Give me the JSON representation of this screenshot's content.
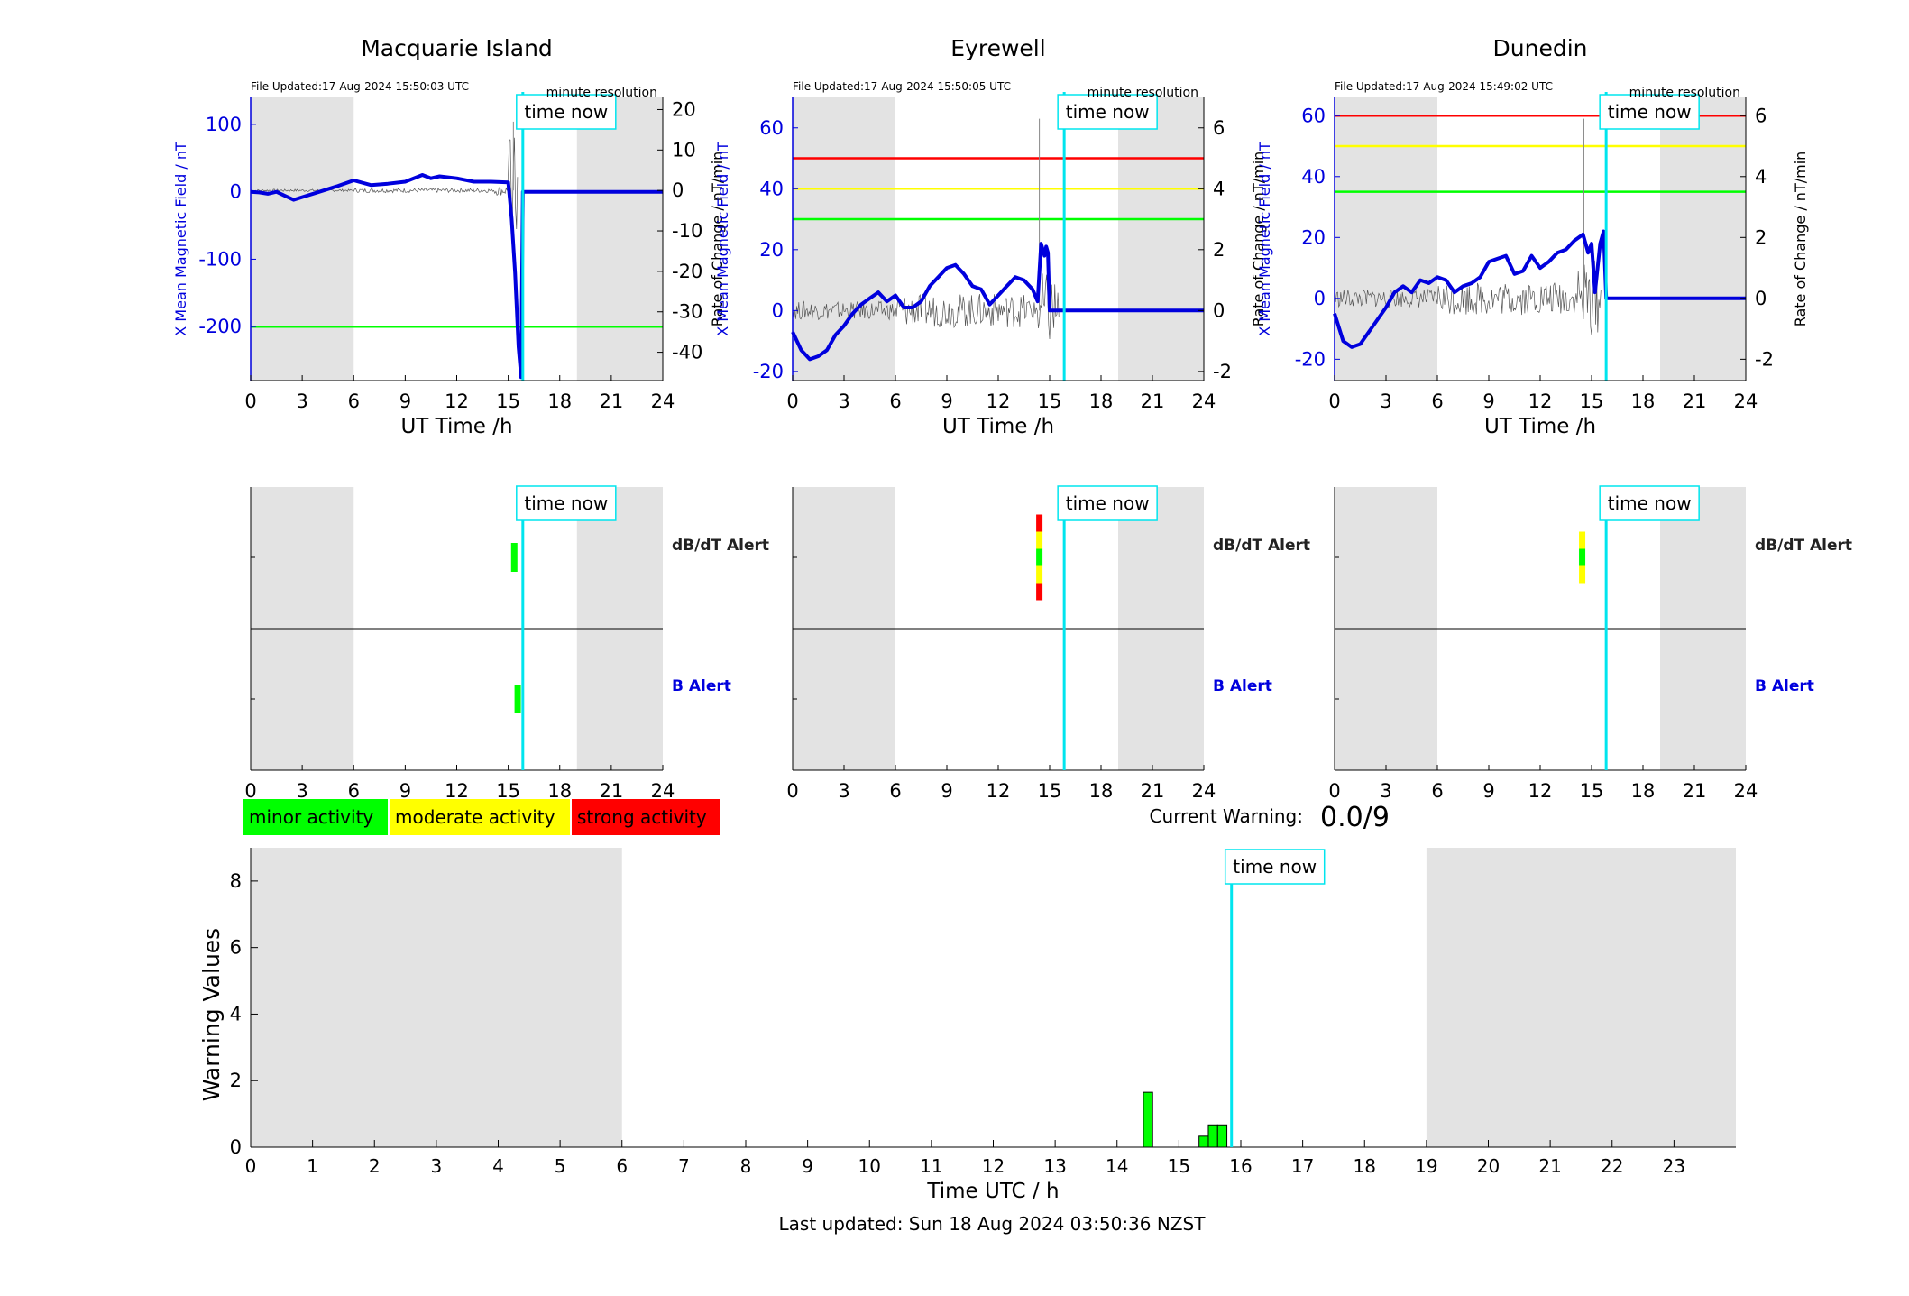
{
  "x_ticks_station": [
    "0",
    "3",
    "6",
    "9",
    "12",
    "15",
    "18",
    "21",
    "24"
  ],
  "time_now_label": "time now",
  "minute_resolution_label": "minute resolution",
  "x_axis_label": "UT Time /h",
  "y_left_label": "X Mean Magnetic Field / nT",
  "y_right_label": "Rate of Change / nT/min",
  "alert_labels": {
    "dbdt": "dB/dT Alert",
    "b": "B Alert"
  },
  "colors": {
    "field": "#0000dd",
    "roc": "#555555",
    "now": "#00e5ee",
    "shade": "#e3e3e3",
    "minor": "#00ff00",
    "moderate": "#ffff00",
    "strong": "#ff0000"
  },
  "legend": {
    "minor": "minor activity",
    "moderate": "moderate activity",
    "strong": "strong activity"
  },
  "current_warning": {
    "label": "Current Warning:",
    "value": "0.0/9"
  },
  "footer": "Last updated: Sun 18 Aug 2024 03:50:36 NZST",
  "chart_data": [
    {
      "type": "line",
      "title": "Macquarie Island",
      "file_updated": "File Updated:17-Aug-2024 15:50:03 UTC",
      "xlabel": "UT Time /h",
      "xlim": [
        0,
        24
      ],
      "ylim_left": [
        -280,
        140
      ],
      "yticks_left": [
        100,
        0,
        -100,
        -200
      ],
      "ylim_right": [
        -47,
        23
      ],
      "yticks_right": [
        20,
        10,
        0,
        -10,
        -20,
        -30,
        -40
      ],
      "time_now": 15.85,
      "shaded_hours": [
        [
          0,
          6
        ],
        [
          19,
          24
        ]
      ],
      "threshold_lines": [
        {
          "level": "minor",
          "value": -200
        }
      ],
      "series": [
        {
          "axis": "left",
          "x": [
            0,
            0.5,
            1,
            1.5,
            2,
            2.5,
            3,
            4,
            5,
            6,
            7,
            8,
            9,
            10,
            10.5,
            11,
            12,
            13,
            14,
            15,
            15.2,
            15.4,
            15.6,
            15.75,
            15.85,
            16,
            24
          ],
          "y": [
            0,
            -1,
            -3,
            0,
            -6,
            -12,
            -8,
            0,
            8,
            17,
            10,
            12,
            15,
            25,
            20,
            23,
            20,
            15,
            15,
            14,
            -40,
            -120,
            -230,
            -275,
            0,
            0,
            0
          ]
        }
      ]
    },
    {
      "type": "line",
      "title": "Eyrewell",
      "file_updated": "File Updated:17-Aug-2024 15:50:05 UTC",
      "xlabel": "UT Time /h",
      "xlim": [
        0,
        24
      ],
      "ylim_left": [
        -23,
        70
      ],
      "yticks_left": [
        60,
        40,
        20,
        0,
        -20
      ],
      "ylim_right": [
        -2.3,
        7
      ],
      "yticks_right": [
        6,
        4,
        2,
        0,
        -2
      ],
      "time_now": 15.85,
      "shaded_hours": [
        [
          0,
          6
        ],
        [
          19,
          24
        ]
      ],
      "threshold_lines": [
        {
          "level": "strong",
          "value": 50
        },
        {
          "level": "moderate",
          "value": 40
        },
        {
          "level": "minor",
          "value": 30
        }
      ],
      "series": [
        {
          "axis": "left",
          "x": [
            0,
            0.5,
            1,
            1.5,
            2,
            2.5,
            3,
            3.5,
            4,
            4.5,
            5,
            5.5,
            6,
            6.5,
            7,
            7.5,
            8,
            8.5,
            9,
            9.5,
            10,
            10.5,
            11,
            11.5,
            12,
            12.5,
            13,
            13.5,
            14,
            14.3,
            14.5,
            14.7,
            14.8,
            14.9,
            15.0,
            15.85,
            16,
            24
          ],
          "y": [
            -7,
            -13,
            -16,
            -15,
            -13,
            -8,
            -5,
            -1,
            2,
            4,
            6,
            3,
            5,
            1,
            1,
            3,
            8,
            11,
            14,
            15,
            12,
            8,
            7,
            2,
            5,
            8,
            11,
            10,
            7,
            3,
            22,
            18,
            21,
            19,
            0,
            0,
            0,
            0
          ]
        }
      ]
    },
    {
      "type": "line",
      "title": "Dunedin",
      "file_updated": "File Updated:17-Aug-2024 15:49:02 UTC",
      "xlabel": "UT Time /h",
      "xlim": [
        0,
        24
      ],
      "ylim_left": [
        -27,
        66
      ],
      "yticks_left": [
        60,
        40,
        20,
        0,
        -20
      ],
      "ylim_right": [
        -2.7,
        6.6
      ],
      "yticks_right": [
        6,
        4,
        2,
        0,
        -2
      ],
      "time_now": 15.85,
      "shaded_hours": [
        [
          0,
          6
        ],
        [
          19,
          24
        ]
      ],
      "threshold_lines": [
        {
          "level": "strong",
          "value": 60
        },
        {
          "level": "moderate",
          "value": 50
        },
        {
          "level": "minor",
          "value": 35
        }
      ],
      "series": [
        {
          "axis": "left",
          "x": [
            0,
            0.5,
            1,
            1.5,
            2,
            2.5,
            3,
            3.5,
            4,
            4.5,
            5,
            5.5,
            6,
            6.5,
            7,
            7.5,
            8,
            8.5,
            9,
            9.5,
            10,
            10.5,
            11,
            11.5,
            12,
            12.5,
            13,
            13.5,
            14,
            14.5,
            14.8,
            15.0,
            15.2,
            15.5,
            15.7,
            15.85,
            24
          ],
          "y": [
            -5,
            -14,
            -16,
            -15,
            -11,
            -7,
            -3,
            2,
            4,
            2,
            6,
            5,
            7,
            6,
            2,
            4,
            5,
            7,
            12,
            13,
            14,
            8,
            9,
            14,
            10,
            12,
            15,
            16,
            19,
            21,
            15,
            18,
            2,
            18,
            22,
            0,
            0
          ]
        }
      ]
    }
  ],
  "alerts": [
    {
      "station": "Macquarie Island",
      "dbdt": [
        {
          "x": 15.35,
          "levels": [
            "minor"
          ]
        }
      ],
      "b": [
        {
          "x": 15.55,
          "levels": [
            "minor"
          ]
        }
      ]
    },
    {
      "station": "Eyrewell",
      "dbdt": [
        {
          "x": 14.4,
          "levels": [
            "strong",
            "moderate",
            "minor",
            "moderate",
            "strong"
          ]
        }
      ],
      "b": []
    },
    {
      "station": "Dunedin",
      "dbdt": [
        {
          "x": 14.45,
          "levels": [
            "moderate",
            "minor",
            "moderate"
          ]
        }
      ],
      "b": []
    }
  ],
  "warning_chart": {
    "type": "bar",
    "ylabel": "Warning Values",
    "xlabel": "Time UTC / h",
    "xlim": [
      0,
      24
    ],
    "ylim": [
      0,
      9
    ],
    "yticks": [
      0,
      2,
      4,
      6,
      8
    ],
    "xticks": [
      0,
      1,
      2,
      3,
      4,
      5,
      6,
      7,
      8,
      9,
      10,
      11,
      12,
      13,
      14,
      15,
      16,
      17,
      18,
      19,
      20,
      21,
      22,
      23
    ],
    "time_now": 15.85,
    "shaded_hours": [
      [
        0,
        6
      ],
      [
        19,
        24
      ]
    ],
    "bars": [
      {
        "x": 14.5,
        "value": 1.65
      },
      {
        "x": 15.4,
        "value": 0.33
      },
      {
        "x": 15.55,
        "value": 0.67
      },
      {
        "x": 15.7,
        "value": 0.67
      }
    ]
  }
}
